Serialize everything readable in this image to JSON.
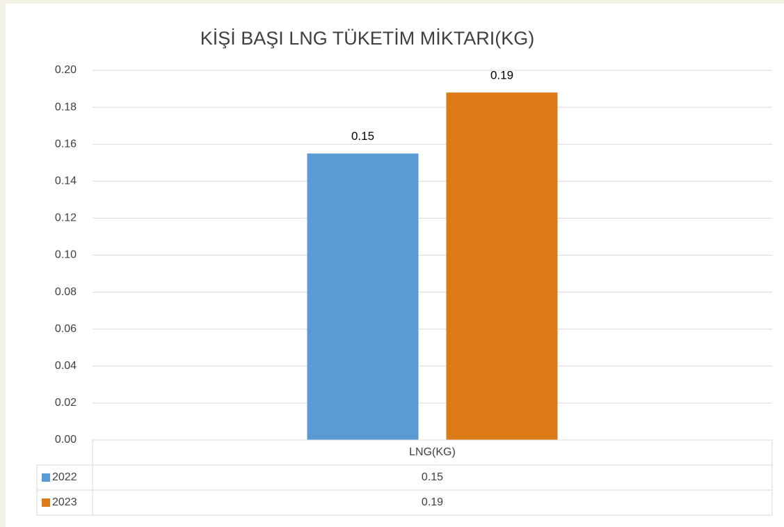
{
  "chart_data": {
    "type": "bar",
    "title": "KİŞİ BAŞI LNG TÜKETİM MİKTARI(KG)",
    "categories": [
      "LNG(KG)"
    ],
    "series": [
      {
        "name": "2022",
        "color": "#5b9bd5",
        "values": [
          0.155
        ],
        "value_labels": [
          "0.15"
        ]
      },
      {
        "name": "2023",
        "color": "#de7b19",
        "values": [
          0.188
        ],
        "value_labels": [
          "0.19"
        ]
      }
    ],
    "ylim": [
      0,
      0.2
    ],
    "yticks": [
      {
        "value": 0,
        "label": "0.00"
      },
      {
        "value": 0.02,
        "label": "0.02"
      },
      {
        "value": 0.04,
        "label": "0.04"
      },
      {
        "value": 0.06,
        "label": "0.06"
      },
      {
        "value": 0.08,
        "label": "0.08"
      },
      {
        "value": 0.1,
        "label": "0.10"
      },
      {
        "value": 0.12,
        "label": "0.12"
      },
      {
        "value": 0.14,
        "label": "0.14"
      },
      {
        "value": 0.16,
        "label": "0.16"
      },
      {
        "value": 0.18,
        "label": "0.18"
      },
      {
        "value": 0.2,
        "label": "0.20"
      }
    ],
    "grid": true
  }
}
